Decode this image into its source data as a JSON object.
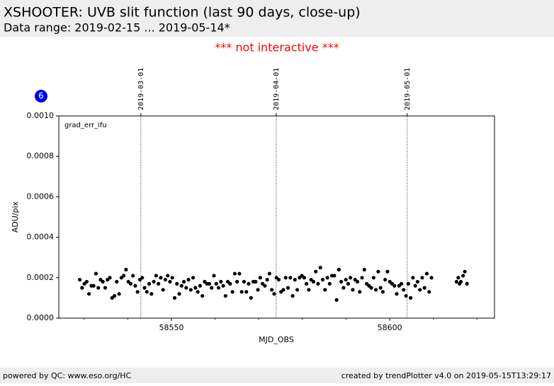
{
  "header": {
    "title": "XSHOOTER: UVB slit function (last 90 days, close-up)",
    "subtitle": "Data range: 2019-02-15 ... 2019-05-14*",
    "notice": "*** not interactive ***",
    "badge": "6"
  },
  "footer": {
    "left": "powered by QC: www.eso.org/HC",
    "right": "created by trendPlotter v4.0 on 2019-05-15T13:29:17"
  },
  "chart_data": {
    "type": "scatter",
    "series_label": "grad_err_ifu",
    "xlabel": "MJD_OBS",
    "ylabel": "ADU/pix",
    "color": "#000000",
    "xlim": [
      58524.2,
      58624.0
    ],
    "ylim": [
      0,
      0.001
    ],
    "xticks": [
      58550,
      58600
    ],
    "xminor_ticks": [
      58530,
      58540,
      58560,
      58570,
      58580,
      58590,
      58610,
      58620
    ],
    "yticks": [
      {
        "value": 0,
        "label": "0.0000"
      },
      {
        "value": 0.0002,
        "label": "0.0002"
      },
      {
        "value": 0.0004,
        "label": "0.0004"
      },
      {
        "value": 0.0006,
        "label": "0.0006"
      },
      {
        "value": 0.0008,
        "label": "0.0008"
      },
      {
        "value": 0.001,
        "label": "0.0010"
      }
    ],
    "date_markers": [
      {
        "value": 58543,
        "label": "2019-03-01"
      },
      {
        "value": 58574,
        "label": "2019-04-01"
      },
      {
        "value": 58604,
        "label": "2019-05-01"
      }
    ],
    "x": [
      58529.0,
      58529.53,
      58530.06,
      58530.59,
      58531.12,
      58531.65,
      58532.18,
      58532.71,
      58533.24,
      58533.77,
      58534.3,
      58534.83,
      58535.36,
      58535.89,
      58536.42,
      58536.95,
      58537.48,
      58538.01,
      58538.54,
      58539.07,
      58539.6,
      58540.13,
      58540.66,
      58541.19,
      58541.72,
      58542.25,
      58542.78,
      58543.31,
      58543.84,
      58544.37,
      58544.9,
      58545.43,
      58545.96,
      58546.49,
      58547.02,
      58547.55,
      58548.08,
      58548.61,
      58549.14,
      58549.67,
      58550.2,
      58550.73,
      58551.26,
      58551.79,
      58552.32,
      58552.85,
      58553.38,
      58553.91,
      58554.44,
      58554.97,
      58555.5,
      58556.03,
      58556.56,
      58557.09,
      58557.62,
      58558.15,
      58558.68,
      58559.21,
      58559.74,
      58560.27,
      58560.8,
      58561.33,
      58561.86,
      58562.39,
      58562.92,
      58563.45,
      58563.98,
      58564.51,
      58565.04,
      58565.57,
      58566.1,
      58566.63,
      58567.16,
      58567.69,
      58568.22,
      58568.75,
      58569.28,
      58569.81,
      58570.34,
      58570.87,
      58571.4,
      58571.93,
      58572.46,
      58572.99,
      58573.52,
      58574.05,
      58574.58,
      58575.11,
      58575.64,
      58576.17,
      58576.7,
      58577.23,
      58577.76,
      58578.29,
      58578.82,
      58579.35,
      58579.88,
      58580.41,
      58580.94,
      58581.47,
      58582.0,
      58582.53,
      58583.06,
      58583.59,
      58584.12,
      58584.65,
      58585.18,
      58585.71,
      58586.24,
      58586.77,
      58587.3,
      58587.83,
      58588.36,
      58588.89,
      58589.42,
      58589.95,
      58590.48,
      58591.01,
      58591.54,
      58592.07,
      58592.6,
      58593.13,
      58593.66,
      58594.19,
      58594.72,
      58595.25,
      58595.78,
      58596.31,
      58596.84,
      58597.37,
      58597.9,
      58598.43,
      58598.96,
      58599.49,
      58600.02,
      58600.55,
      58601.08,
      58601.61,
      58602.14,
      58602.67,
      58603.2,
      58603.73,
      58604.26,
      58604.79,
      58605.32,
      58605.85,
      58606.38,
      58606.91,
      58607.44,
      58607.97,
      58608.5,
      58609.03,
      58609.56,
      58615.3,
      58615.7,
      58616.0,
      58616.3,
      58616.8,
      58617.2,
      58617.7
    ],
    "values": [
      0.00019,
      0.00015,
      0.00017,
      0.00018,
      0.00012,
      0.00016,
      0.00016,
      0.00022,
      0.00015,
      0.00019,
      0.00018,
      0.00015,
      0.00019,
      0.0002,
      0.0001,
      0.00011,
      0.00018,
      0.00012,
      0.0002,
      0.00021,
      0.00024,
      0.00018,
      0.00017,
      0.00021,
      0.00016,
      0.00013,
      0.00019,
      0.0002,
      0.00015,
      0.00013,
      0.00017,
      0.00012,
      0.00018,
      0.00021,
      0.00017,
      0.0002,
      0.00014,
      0.00019,
      0.00021,
      0.00018,
      0.0002,
      0.0001,
      0.00017,
      0.00012,
      0.00016,
      0.00018,
      0.00015,
      0.00019,
      0.00014,
      0.0002,
      0.00015,
      0.00013,
      0.00016,
      0.00011,
      0.00018,
      0.00017,
      0.00017,
      0.00015,
      0.00021,
      0.00017,
      0.00015,
      0.00018,
      0.00016,
      0.00011,
      0.00018,
      0.00017,
      0.00013,
      0.00022,
      0.00018,
      0.00022,
      0.00013,
      0.00018,
      0.00013,
      0.00017,
      0.0001,
      0.00018,
      0.00018,
      0.00014,
      0.0002,
      0.00017,
      0.00016,
      0.00019,
      0.00022,
      0.00014,
      0.00012,
      0.0002,
      0.00019,
      0.00013,
      0.00014,
      0.0002,
      0.00015,
      0.0002,
      0.00011,
      0.00019,
      0.00014,
      0.0002,
      0.00021,
      0.0002,
      0.00017,
      0.00014,
      0.00019,
      0.00018,
      0.00023,
      0.00017,
      0.00025,
      0.00019,
      0.00014,
      0.0002,
      0.00017,
      0.00021,
      0.00021,
      9e-05,
      0.00024,
      0.00018,
      0.00015,
      0.00019,
      0.00017,
      0.0002,
      0.00014,
      0.00019,
      0.00018,
      0.00013,
      0.0002,
      0.00024,
      0.00017,
      0.00016,
      0.00015,
      0.0002,
      0.00014,
      0.00023,
      0.00015,
      0.00013,
      0.00019,
      0.00023,
      0.00018,
      0.00017,
      0.00016,
      0.00012,
      0.00016,
      0.00017,
      0.00014,
      0.00011,
      0.00017,
      0.0001,
      0.0002,
      0.00016,
      0.00018,
      0.00014,
      0.0002,
      0.00015,
      0.00022,
      0.00013,
      0.0002,
      0.00018,
      0.0002,
      0.00017,
      0.00018,
      0.00021,
      0.00023,
      0.00017
    ]
  }
}
